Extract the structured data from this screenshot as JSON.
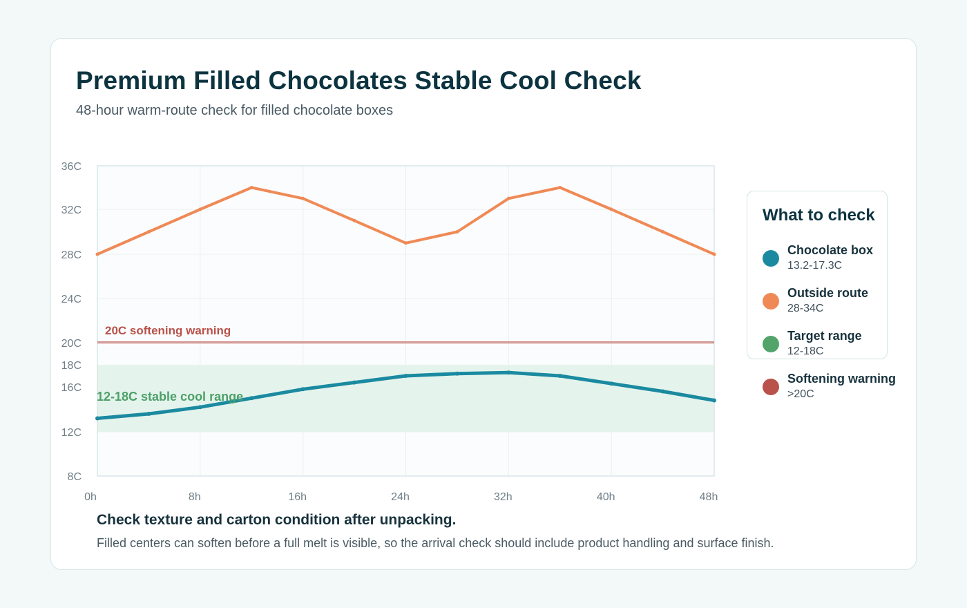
{
  "header": {
    "title": "Premium Filled Chocolates Stable Cool Check",
    "subtitle": "48-hour warm-route check for filled chocolate boxes"
  },
  "chart_data": {
    "type": "line",
    "x_ticks": [
      0,
      8,
      16,
      24,
      32,
      40,
      48
    ],
    "x_tick_labels": [
      "0h",
      "8h",
      "16h",
      "24h",
      "32h",
      "40h",
      "48h"
    ],
    "y_ticks": [
      8,
      12,
      16,
      18,
      20,
      24,
      28,
      32,
      36
    ],
    "y_tick_labels": [
      "8C",
      "12C",
      "16C",
      "18C",
      "20C",
      "24C",
      "28C",
      "32C",
      "36C"
    ],
    "xlim": [
      0,
      48
    ],
    "ylim": [
      8,
      36
    ],
    "grid": true,
    "legend_position": "right",
    "series": [
      {
        "name": "Chocolate box",
        "color": "#1b8aa0",
        "x": [
          0,
          4,
          8,
          12,
          16,
          20,
          24,
          28,
          32,
          36,
          40,
          44,
          48
        ],
        "y": [
          13.2,
          13.6,
          14.2,
          15.0,
          15.8,
          16.4,
          17.0,
          17.2,
          17.3,
          17.0,
          16.3,
          15.6,
          14.8
        ]
      },
      {
        "name": "Outside route",
        "color": "#ef8a56",
        "x": [
          0,
          4,
          8,
          12,
          16,
          20,
          24,
          28,
          32,
          36,
          40,
          44,
          48
        ],
        "y": [
          28,
          30,
          32,
          34,
          33,
          31,
          29,
          30,
          33,
          34,
          32,
          30,
          28
        ]
      }
    ],
    "target_band": {
      "low": 12,
      "high": 18,
      "label": "12-18C stable cool range",
      "fill_color": "#e4f4ec",
      "label_color": "#4ea06a"
    },
    "warning_line": {
      "value": 20,
      "label": "20C softening warning",
      "color": "#b9524a"
    }
  },
  "legend": {
    "title": "What to check",
    "items": [
      {
        "name": "Chocolate box",
        "detail": "13.2-17.3C",
        "color": "#1b8aa0"
      },
      {
        "name": "Outside route",
        "detail": "28-34C",
        "color": "#ef8a56"
      },
      {
        "name": "Target range",
        "detail": "12-18C",
        "color": "#52a46a"
      },
      {
        "name": "Softening warning",
        "detail": ">20C",
        "color": "#b9524a"
      }
    ]
  },
  "note": {
    "title": "Check texture and carton condition after unpacking.",
    "body": "Filled centers can soften before a full melt is visible, so the arrival check should include product handling and surface finish."
  }
}
